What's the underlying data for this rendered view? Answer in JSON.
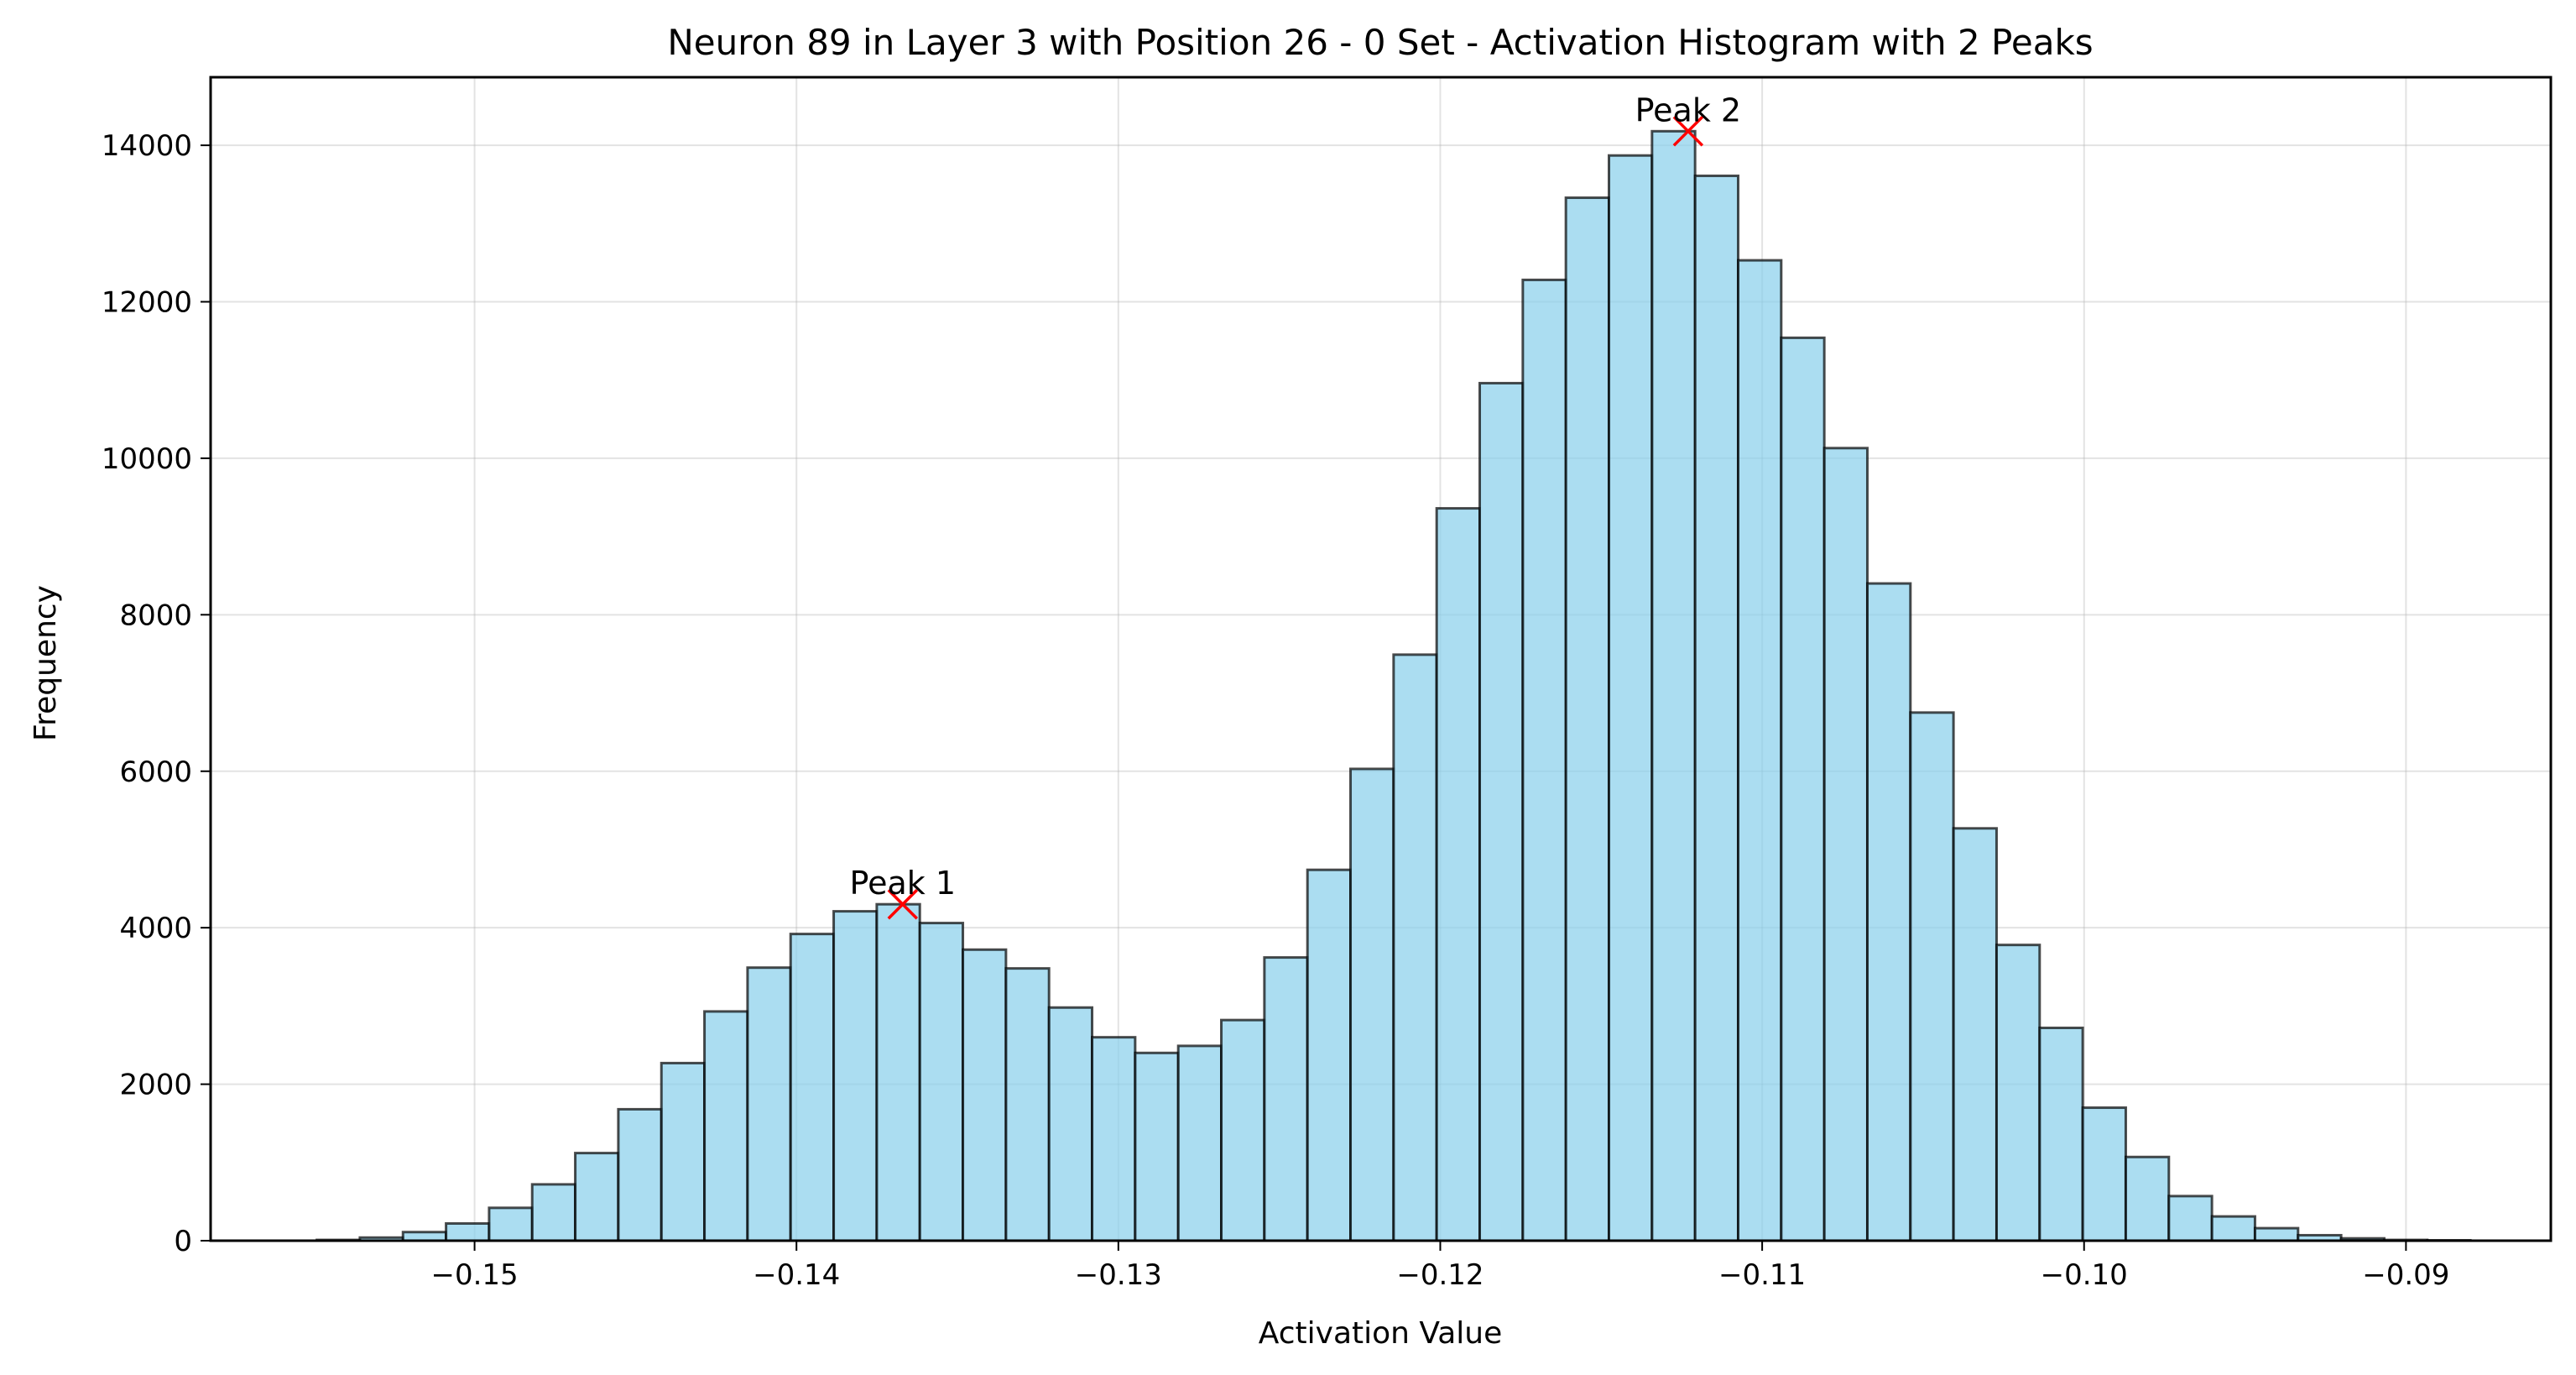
{
  "chart_data": {
    "type": "histogram",
    "title": "Neuron 89 in Layer 3 with Position 26 - 0 Set - Activation Histogram with 2 Peaks",
    "xlabel": "Activation Value",
    "ylabel": "Frequency",
    "xlim": [
      -0.1582,
      -0.0855
    ],
    "ylim": [
      0,
      14870
    ],
    "grid": true,
    "x_ticks": [
      -0.15,
      -0.14,
      -0.13,
      -0.12,
      -0.11,
      -0.1,
      -0.09
    ],
    "x_tick_labels": [
      "−0.15",
      "−0.14",
      "−0.13",
      "−0.12",
      "−0.11",
      "−0.10",
      "−0.09"
    ],
    "y_ticks": [
      0,
      2000,
      4000,
      6000,
      8000,
      10000,
      12000,
      14000
    ],
    "y_tick_labels": [
      "0",
      "2000",
      "4000",
      "6000",
      "8000",
      "10000",
      "12000",
      "14000"
    ],
    "bin_start": -0.1549,
    "bin_width": 0.001338,
    "counts": [
      10,
      40,
      110,
      220,
      420,
      720,
      1120,
      1680,
      2270,
      2930,
      3490,
      3920,
      4210,
      4300,
      4060,
      3720,
      3480,
      2980,
      2600,
      2400,
      2490,
      2820,
      3620,
      4740,
      6030,
      7490,
      9360,
      10960,
      12280,
      13330,
      13870,
      14180,
      13610,
      12530,
      11540,
      10130,
      8400,
      6750,
      5270,
      3780,
      2720,
      1700,
      1070,
      570,
      310,
      160,
      70,
      30,
      10,
      5
    ],
    "colors": {
      "bar_fill": "#87ceeb",
      "bar_edge": "#000000",
      "peak_marker": "#ff0000"
    },
    "peaks": [
      {
        "label": "Peak 1",
        "x": -0.1367,
        "y": 4300
      },
      {
        "label": "Peak 2",
        "x": -0.1123,
        "y": 14180
      }
    ]
  }
}
